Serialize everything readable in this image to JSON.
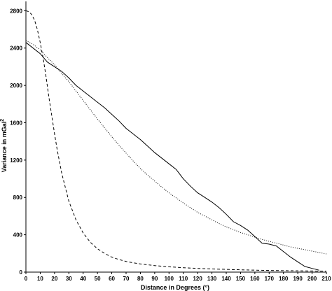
{
  "chart_data": {
    "type": "line",
    "xlabel": "Distance in Degrees (°)",
    "ylabel_main": "Variance in mGal",
    "ylabel_sup": "2",
    "xlim": [
      0,
      210
    ],
    "ylim": [
      0,
      2900
    ],
    "xticks": [
      0,
      10,
      20,
      30,
      40,
      50,
      60,
      70,
      80,
      90,
      100,
      110,
      120,
      130,
      140,
      150,
      160,
      170,
      180,
      190,
      200,
      210
    ],
    "yticks": [
      0,
      400,
      800,
      1200,
      1600,
      2000,
      2400,
      2800
    ],
    "grid": false,
    "series": [
      {
        "style": "solid",
        "color": "#000000",
        "x": [
          0,
          5,
          10,
          15,
          20,
          25,
          30,
          35,
          40,
          45,
          50,
          55,
          60,
          65,
          70,
          75,
          80,
          85,
          90,
          95,
          100,
          105,
          110,
          115,
          120,
          125,
          130,
          135,
          140,
          145,
          150,
          155,
          160,
          165,
          170,
          175,
          180,
          185,
          190,
          195,
          200,
          205
        ],
        "y": [
          2460,
          2400,
          2340,
          2250,
          2200,
          2150,
          2080,
          2000,
          1940,
          1880,
          1820,
          1760,
          1690,
          1620,
          1540,
          1480,
          1420,
          1350,
          1280,
          1220,
          1160,
          1100,
          1000,
          920,
          850,
          800,
          750,
          690,
          620,
          540,
          500,
          450,
          380,
          310,
          300,
          280,
          220,
          160,
          110,
          60,
          40,
          20
        ]
      },
      {
        "style": "dotted",
        "color": "#000000",
        "x": [
          0,
          5,
          10,
          15,
          20,
          25,
          30,
          35,
          40,
          45,
          50,
          55,
          60,
          65,
          70,
          75,
          80,
          85,
          90,
          95,
          100,
          105,
          110,
          115,
          120,
          125,
          130,
          135,
          140,
          145,
          150,
          155,
          160,
          165,
          170,
          175,
          180,
          185,
          190,
          195,
          200,
          205,
          210
        ],
        "y": [
          2480,
          2440,
          2380,
          2300,
          2220,
          2130,
          2040,
          1940,
          1840,
          1740,
          1640,
          1545,
          1450,
          1360,
          1275,
          1190,
          1110,
          1040,
          975,
          910,
          850,
          795,
          740,
          690,
          640,
          600,
          560,
          520,
          485,
          455,
          425,
          400,
          375,
          350,
          330,
          310,
          290,
          270,
          255,
          240,
          225,
          210,
          195
        ]
      },
      {
        "style": "dashed",
        "color": "#000000",
        "x": [
          0,
          2,
          4,
          6,
          8,
          10,
          12,
          14,
          16,
          18,
          20,
          22,
          25,
          28,
          30,
          35,
          40,
          45,
          50,
          55,
          60,
          65,
          70,
          75,
          80,
          90,
          100,
          110,
          120,
          130,
          140,
          150,
          160,
          170,
          180,
          190,
          200,
          210
        ],
        "y": [
          2800,
          2790,
          2760,
          2700,
          2600,
          2460,
          2300,
          2100,
          1880,
          1680,
          1480,
          1300,
          1060,
          880,
          760,
          560,
          420,
          320,
          250,
          200,
          160,
          135,
          115,
          100,
          88,
          70,
          57,
          47,
          40,
          34,
          29,
          25,
          21,
          18,
          16,
          14,
          12,
          10
        ]
      }
    ]
  }
}
